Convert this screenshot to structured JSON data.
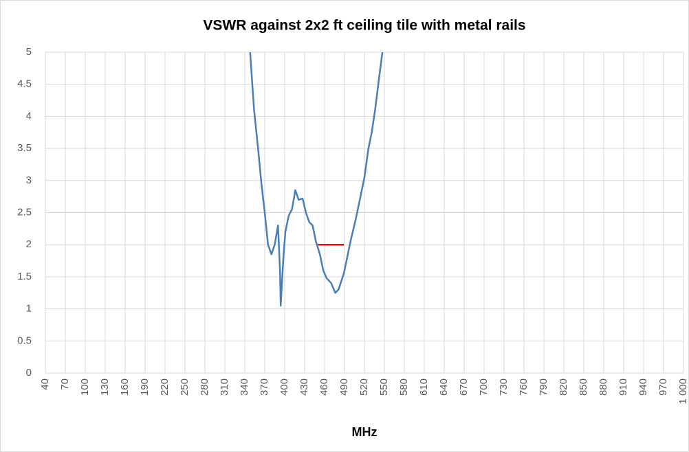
{
  "chart_data": {
    "type": "line",
    "title": "VSWR against 2x2 ft ceiling tile with metal rails",
    "xlabel": "MHz",
    "series": [
      {
        "color": "#4a7ebb",
        "x": [
          348,
          354,
          360,
          365,
          370,
          375,
          380,
          385,
          390,
          393,
          394,
          398,
          401,
          406,
          411,
          416,
          421,
          427,
          432,
          437,
          442,
          447,
          453,
          458,
          463,
          470,
          476,
          481,
          489,
          494,
          499,
          507,
          515,
          520,
          526,
          531,
          536,
          542,
          547
        ],
        "values": [
          5,
          4.1,
          3.5,
          2.95,
          2.5,
          2.0,
          1.85,
          2.0,
          2.3,
          1.6,
          1.05,
          1.8,
          2.2,
          2.45,
          2.55,
          2.85,
          2.7,
          2.72,
          2.5,
          2.35,
          2.3,
          2.05,
          1.85,
          1.6,
          1.48,
          1.4,
          1.25,
          1.3,
          1.55,
          1.8,
          2.05,
          2.4,
          2.8,
          3.05,
          3.5,
          3.75,
          4.1,
          4.6,
          5.0
        ]
      },
      {
        "color": "#ff0000",
        "x": [
          450,
          489
        ],
        "values": [
          2,
          2
        ]
      }
    ],
    "xlim": [
      40,
      1000
    ],
    "xticks": [
      40,
      70,
      100,
      130,
      160,
      190,
      220,
      250,
      280,
      310,
      340,
      370,
      400,
      430,
      460,
      490,
      520,
      550,
      580,
      610,
      640,
      670,
      700,
      730,
      760,
      790,
      820,
      850,
      880,
      910,
      940,
      970,
      {
        "value": 1000,
        "label": "1 000"
      }
    ],
    "ylim": [
      0,
      5
    ],
    "yticks": [
      0,
      0.5,
      1,
      1.5,
      2,
      2.5,
      3,
      3.5,
      4,
      4.5,
      5
    ],
    "grid": true
  }
}
